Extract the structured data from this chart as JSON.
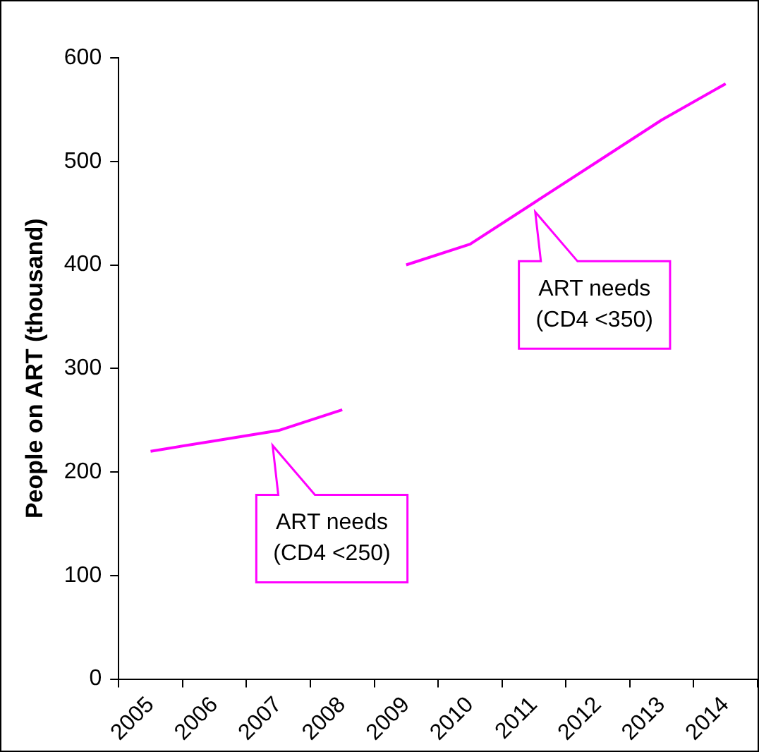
{
  "chart_data": {
    "type": "line",
    "ylabel": "People on ART (thousand)",
    "categories": [
      "2005",
      "2006",
      "2007",
      "2008",
      "2009",
      "2010",
      "2011",
      "2012",
      "2013",
      "2014"
    ],
    "series": [
      {
        "color": "#ff00ff",
        "values": [
          220,
          230,
          240,
          260,
          null,
          null,
          null,
          null,
          null,
          null
        ]
      },
      {
        "color": "#ff00ff",
        "values": [
          null,
          null,
          null,
          null,
          400,
          420,
          460,
          500,
          540,
          575
        ]
      }
    ],
    "ylim": [
      0,
      600
    ],
    "yticks": [
      0,
      100,
      200,
      300,
      400,
      500,
      600
    ],
    "grid": false,
    "legend": false,
    "marker": "none",
    "line_style": "solid",
    "annotations": [
      "ART needs\n(CD4 <250)",
      "ART needs\n(CD4 <350)"
    ]
  }
}
